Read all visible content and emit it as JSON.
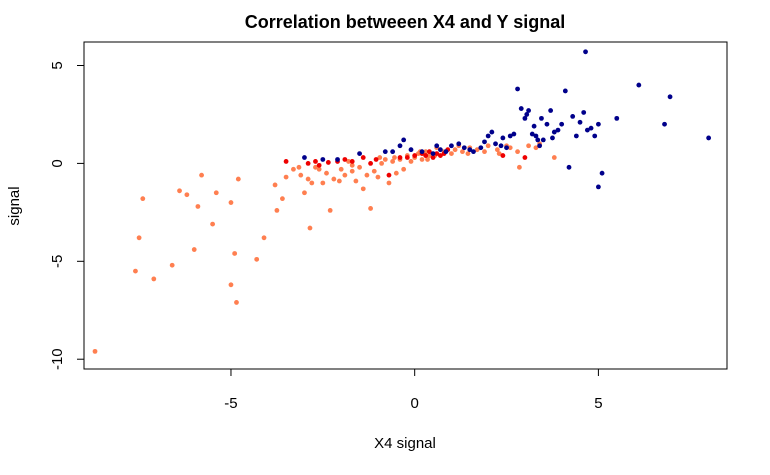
{
  "chart_data": {
    "type": "scatter",
    "title": "Correlation betweeen X4 and Y signal",
    "xlabel": "X4 signal",
    "ylabel": "signal",
    "xlim": [
      -9.0,
      8.5
    ],
    "ylim": [
      -10.5,
      6.2
    ],
    "xticks": [
      -5,
      0,
      5
    ],
    "yticks": [
      -10,
      -5,
      0,
      5
    ],
    "xtick_labels": [
      "-5",
      "0",
      "5"
    ],
    "ytick_labels": [
      "-10",
      "-5",
      "0",
      "5"
    ],
    "grid": false,
    "legend": "none",
    "series": [
      {
        "name": "coral",
        "color": "#ff7f50",
        "points": [
          [
            -8.7,
            -9.6
          ],
          [
            -7.6,
            -5.5
          ],
          [
            -7.5,
            -3.8
          ],
          [
            -7.4,
            -1.8
          ],
          [
            -7.1,
            -5.9
          ],
          [
            -6.6,
            -5.2
          ],
          [
            -6.4,
            -1.4
          ],
          [
            -6.2,
            -1.6
          ],
          [
            -6.0,
            -4.4
          ],
          [
            -5.9,
            -2.2
          ],
          [
            -5.8,
            -0.6
          ],
          [
            -5.5,
            -3.1
          ],
          [
            -5.4,
            -1.5
          ],
          [
            -5.0,
            -2.0
          ],
          [
            -5.0,
            -6.2
          ],
          [
            -4.9,
            -4.6
          ],
          [
            -4.85,
            -7.1
          ],
          [
            -4.8,
            -0.8
          ],
          [
            -4.3,
            -4.9
          ],
          [
            -4.1,
            -3.8
          ],
          [
            -3.8,
            -1.1
          ],
          [
            -3.75,
            -2.4
          ],
          [
            -3.6,
            -1.8
          ],
          [
            -3.5,
            -0.7
          ],
          [
            -3.3,
            -0.3
          ],
          [
            -3.1,
            -0.6
          ],
          [
            -3.0,
            -1.5
          ],
          [
            -2.9,
            -0.8
          ],
          [
            -2.85,
            -3.3
          ],
          [
            -2.8,
            -1.0
          ],
          [
            -2.7,
            -0.2
          ],
          [
            -2.6,
            -0.3
          ],
          [
            -2.5,
            -1.0
          ],
          [
            -2.4,
            -0.5
          ],
          [
            -2.3,
            -2.4
          ],
          [
            -2.2,
            -0.8
          ],
          [
            -2.0,
            -0.3
          ],
          [
            -1.9,
            -0.6
          ],
          [
            -1.8,
            0.1
          ],
          [
            -1.7,
            -0.4
          ],
          [
            -1.6,
            -0.9
          ],
          [
            -1.5,
            -0.2
          ],
          [
            -1.4,
            -1.3
          ],
          [
            -1.3,
            -0.6
          ],
          [
            -1.2,
            -2.3
          ],
          [
            -1.1,
            -0.4
          ],
          [
            -1.0,
            -0.7
          ],
          [
            -0.9,
            0.0
          ],
          [
            -0.8,
            0.2
          ],
          [
            -0.7,
            -1.0
          ],
          [
            -0.6,
            0.1
          ],
          [
            -0.5,
            -0.5
          ],
          [
            -0.4,
            0.2
          ],
          [
            -0.3,
            -0.3
          ],
          [
            -0.2,
            0.4
          ],
          [
            -0.1,
            0.1
          ],
          [
            0.0,
            0.3
          ],
          [
            0.1,
            0.5
          ],
          [
            0.2,
            0.2
          ],
          [
            0.3,
            0.6
          ],
          [
            0.4,
            0.4
          ],
          [
            0.6,
            0.8
          ],
          [
            0.8,
            0.6
          ],
          [
            1.0,
            0.5
          ],
          [
            1.2,
            0.9
          ],
          [
            1.3,
            0.6
          ],
          [
            1.5,
            0.8
          ],
          [
            1.7,
            0.7
          ],
          [
            2.0,
            0.9
          ],
          [
            2.3,
            0.5
          ],
          [
            2.5,
            0.9
          ],
          [
            2.8,
            0.6
          ],
          [
            2.85,
            -0.2
          ],
          [
            3.1,
            0.9
          ],
          [
            3.4,
            1.0
          ],
          [
            3.8,
            0.3
          ],
          [
            -1.7,
            -0.1
          ],
          [
            -0.55,
            0.3
          ],
          [
            0.15,
            0.6
          ],
          [
            0.55,
            0.4
          ],
          [
            1.1,
            0.7
          ],
          [
            1.9,
            0.6
          ],
          [
            2.6,
            0.8
          ],
          [
            -3.15,
            -0.2
          ],
          [
            -2.05,
            -0.9
          ],
          [
            -0.95,
            0.3
          ],
          [
            0.35,
            0.2
          ],
          [
            1.45,
            0.5
          ],
          [
            2.25,
            0.7
          ],
          [
            3.3,
            0.8
          ]
        ]
      },
      {
        "name": "red",
        "color": "#ee0000",
        "points": [
          [
            -3.5,
            0.1
          ],
          [
            -2.9,
            0.0
          ],
          [
            -2.7,
            0.1
          ],
          [
            -2.6,
            -0.1
          ],
          [
            -2.1,
            0.1
          ],
          [
            -1.9,
            0.2
          ],
          [
            -1.7,
            0.1
          ],
          [
            -1.4,
            0.3
          ],
          [
            -1.2,
            0.0
          ],
          [
            -0.7,
            -0.6
          ],
          [
            -0.4,
            0.3
          ],
          [
            -0.2,
            0.3
          ],
          [
            0.0,
            0.4
          ],
          [
            0.2,
            0.5
          ],
          [
            0.4,
            0.6
          ],
          [
            0.5,
            0.3
          ],
          [
            0.6,
            0.5
          ],
          [
            0.7,
            0.4
          ],
          [
            0.8,
            0.5
          ],
          [
            0.9,
            0.7
          ],
          [
            2.4,
            0.4
          ],
          [
            3.0,
            0.3
          ],
          [
            -2.35,
            0.05
          ],
          [
            -1.05,
            0.2
          ],
          [
            0.3,
            0.4
          ]
        ]
      },
      {
        "name": "navy",
        "color": "#00008b",
        "points": [
          [
            -3.0,
            0.3
          ],
          [
            -2.5,
            0.2
          ],
          [
            -2.1,
            0.2
          ],
          [
            -1.5,
            0.5
          ],
          [
            -0.8,
            0.6
          ],
          [
            -0.4,
            0.9
          ],
          [
            -0.3,
            1.2
          ],
          [
            -0.1,
            0.7
          ],
          [
            0.2,
            0.6
          ],
          [
            0.5,
            0.5
          ],
          [
            0.6,
            0.9
          ],
          [
            0.7,
            0.7
          ],
          [
            1.0,
            0.9
          ],
          [
            1.2,
            1.0
          ],
          [
            1.5,
            0.7
          ],
          [
            1.6,
            0.6
          ],
          [
            1.8,
            0.8
          ],
          [
            1.9,
            1.1
          ],
          [
            2.0,
            1.4
          ],
          [
            2.1,
            1.6
          ],
          [
            2.2,
            1.0
          ],
          [
            2.4,
            1.3
          ],
          [
            2.5,
            0.8
          ],
          [
            2.6,
            1.4
          ],
          [
            2.7,
            1.5
          ],
          [
            2.8,
            3.8
          ],
          [
            2.9,
            2.8
          ],
          [
            3.0,
            2.3
          ],
          [
            3.05,
            2.5
          ],
          [
            3.1,
            2.7
          ],
          [
            3.2,
            1.5
          ],
          [
            3.25,
            1.9
          ],
          [
            3.3,
            1.4
          ],
          [
            3.35,
            1.2
          ],
          [
            3.4,
            0.9
          ],
          [
            3.45,
            2.3
          ],
          [
            3.5,
            1.2
          ],
          [
            3.6,
            2.0
          ],
          [
            3.7,
            2.7
          ],
          [
            3.8,
            1.6
          ],
          [
            3.9,
            1.7
          ],
          [
            4.0,
            2.0
          ],
          [
            4.1,
            3.7
          ],
          [
            4.2,
            -0.2
          ],
          [
            4.3,
            2.4
          ],
          [
            4.4,
            1.4
          ],
          [
            4.5,
            2.1
          ],
          [
            4.6,
            2.6
          ],
          [
            4.65,
            5.7
          ],
          [
            4.7,
            1.7
          ],
          [
            4.8,
            1.8
          ],
          [
            4.9,
            1.4
          ],
          [
            5.0,
            2.0
          ],
          [
            5.0,
            -1.2
          ],
          [
            5.1,
            -0.5
          ],
          [
            5.5,
            2.3
          ],
          [
            6.1,
            4.0
          ],
          [
            6.8,
            2.0
          ],
          [
            6.95,
            3.4
          ],
          [
            8.0,
            1.3
          ],
          [
            3.75,
            1.3
          ],
          [
            2.35,
            0.9
          ],
          [
            1.35,
            0.8
          ],
          [
            0.85,
            0.6
          ],
          [
            -0.6,
            0.6
          ]
        ]
      }
    ]
  }
}
